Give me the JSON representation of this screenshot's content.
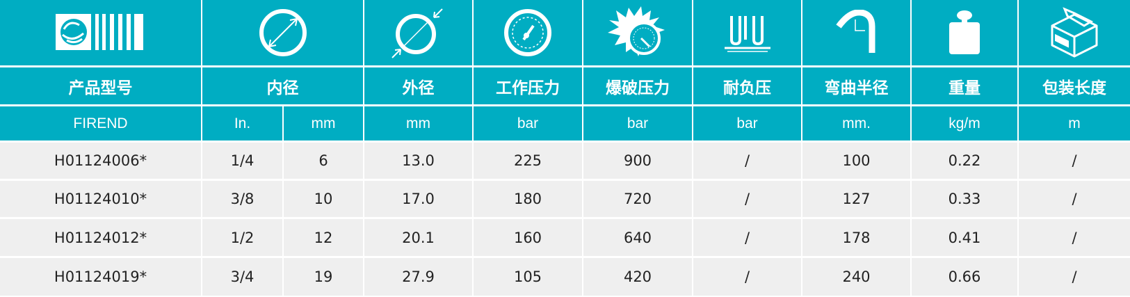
{
  "colors": {
    "header_bg": "#00adc2",
    "row_bg": "#efefef",
    "grid": "#ffffff"
  },
  "icons": [
    "brand-logo-icon",
    "inner-diameter-icon",
    "outer-diameter-icon",
    "pressure-gauge-icon",
    "burst-pressure-icon",
    "vacuum-icon",
    "bend-radius-icon",
    "weight-icon",
    "package-box-icon"
  ],
  "headers": [
    "产品型号",
    "内径",
    "外径",
    "工作压力",
    "爆破压力",
    "耐负压",
    "弯曲半径",
    "重量",
    "包装长度"
  ],
  "units": [
    "FIREND",
    "In.",
    "mm",
    "mm",
    "bar",
    "bar",
    "bar",
    "mm.",
    "kg/m",
    "m"
  ],
  "rows": [
    [
      "H01124006*",
      "1/4",
      "6",
      "13.0",
      "225",
      "900",
      "/",
      "100",
      "0.22",
      "/"
    ],
    [
      "H01124010*",
      "3/8",
      "10",
      "17.0",
      "180",
      "720",
      "/",
      "127",
      "0.33",
      "/"
    ],
    [
      "H01124012*",
      "1/2",
      "12",
      "20.1",
      "160",
      "640",
      "/",
      "178",
      "0.41",
      "/"
    ],
    [
      "H01124019*",
      "3/4",
      "19",
      "27.9",
      "105",
      "420",
      "/",
      "240",
      "0.66",
      "/"
    ]
  ]
}
